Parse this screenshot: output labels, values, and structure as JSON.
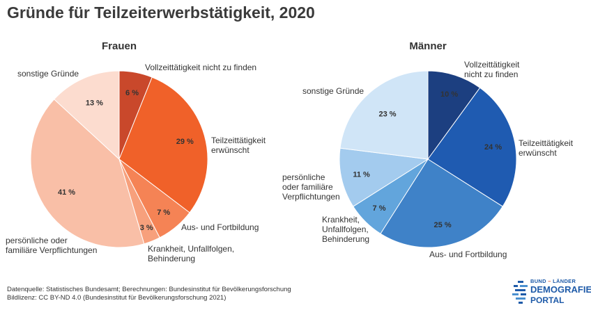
{
  "title": "Gründe für Teilzeiterwerbstätigkeit, 2020",
  "chart_data": [
    {
      "type": "pie",
      "title": "Frauen",
      "slices": [
        {
          "label": [
            "Vollzeittätigkeit nicht zu finden"
          ],
          "value": 6,
          "value_label": "6 %",
          "color": "#c9482b"
        },
        {
          "label": [
            "Teilzeittätigkeit",
            "erwünscht"
          ],
          "value": 29,
          "value_label": "29 %",
          "color": "#f06129"
        },
        {
          "label": [
            "Aus- und Fortbildung"
          ],
          "value": 7,
          "value_label": "7 %",
          "color": "#f58355"
        },
        {
          "label": [
            "Krankheit, Unfallfolgen,",
            "Behinderung"
          ],
          "value": 3,
          "value_label": "3 %",
          "color": "#f7a07c"
        },
        {
          "label": [
            "persönliche oder",
            "familiäre Verpflichtungen"
          ],
          "value": 41,
          "value_label": "41 %",
          "color": "#f9bfa7"
        },
        {
          "label": [
            "sonstige Gründe"
          ],
          "value": 13,
          "value_label": "13 %",
          "color": "#fcdccf"
        }
      ]
    },
    {
      "type": "pie",
      "title": "Männer",
      "slices": [
        {
          "label": [
            "Vollzeittätigkeit",
            "nicht zu finden"
          ],
          "value": 10,
          "value_label": "10 %",
          "color": "#1c3f80"
        },
        {
          "label": [
            "Teilzeittätigkeit",
            "erwünscht"
          ],
          "value": 24,
          "value_label": "24 %",
          "color": "#1f5bb1"
        },
        {
          "label": [
            "Aus- und Fortbildung"
          ],
          "value": 25,
          "value_label": "25 %",
          "color": "#3f82c8"
        },
        {
          "label": [
            "Krankheit,",
            "Unfallfolgen,",
            "Behinderung"
          ],
          "value": 7,
          "value_label": "7 %",
          "color": "#62a5dc"
        },
        {
          "label": [
            "persönliche",
            "oder familiäre",
            "Verpflichtungen"
          ],
          "value": 11,
          "value_label": "11 %",
          "color": "#a3cbee"
        },
        {
          "label": [
            "sonstige Gründe"
          ],
          "value": 23,
          "value_label": "23 %",
          "color": "#d0e5f7"
        }
      ]
    }
  ],
  "footer": {
    "source": "Datenquelle: Statistisches Bundesamt; Berechnungen: Bundesinstitut für Bevölkerungsforschung",
    "license": "Bildlizenz: CC BY-ND 4.0 (Bundesinstitut für Bevölkerungsforschung 2021)"
  },
  "logo": {
    "line1_a": "BUND",
    "line1_sep": " – ",
    "line1_b": "LÄNDER",
    "line2": "DEMOGRAFIE",
    "line3": "PORTAL"
  }
}
